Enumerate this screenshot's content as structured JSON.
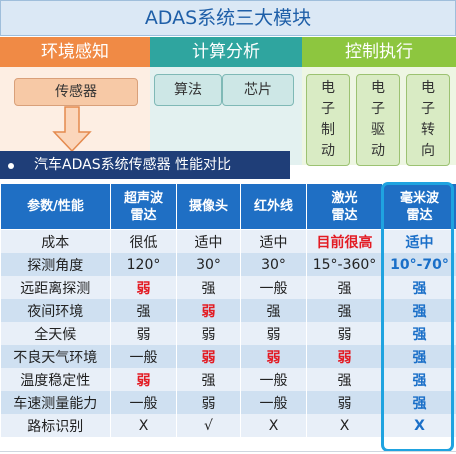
{
  "title": "ADAS系统三大模块",
  "categories": {
    "env": "环境感知",
    "calc": "计算分析",
    "ctrl": "控制执行"
  },
  "boxes": {
    "sensor": "传感器",
    "algo": "算法",
    "chip": "芯片",
    "brake": [
      "电",
      "子",
      "制",
      "动"
    ],
    "drive": [
      "电",
      "子",
      "驱",
      "动"
    ],
    "steer": [
      "电",
      "子",
      "转",
      "向"
    ]
  },
  "section_title": "汽车ADAS系统传感器 性能对比",
  "colors": {
    "header_blue": "#1f6fc4",
    "highlight_red": "#e31b23",
    "mm_radar_blue": "#1a6fc8",
    "frame_cyan": "#1fa3e0"
  },
  "table": {
    "headers": [
      "参数/性能",
      "超声波\n雷达",
      "摄像头",
      "红外线",
      "激光\n雷达",
      "毫米波\n雷达"
    ],
    "rows": [
      {
        "label": "成本",
        "cells": [
          "很低",
          "适中",
          "适中",
          "目前很高",
          "适中"
        ],
        "red": [
          false,
          false,
          false,
          true,
          false
        ]
      },
      {
        "label": "探测角度",
        "cells": [
          "120°",
          "30°",
          "30°",
          "15°-360°",
          "10°-70°"
        ],
        "red": [
          false,
          false,
          false,
          false,
          false
        ]
      },
      {
        "label": "远距离探测",
        "cells": [
          "弱",
          "强",
          "一般",
          "强",
          "强"
        ],
        "red": [
          true,
          false,
          false,
          false,
          false
        ]
      },
      {
        "label": "夜间环境",
        "cells": [
          "强",
          "弱",
          "强",
          "强",
          "强"
        ],
        "red": [
          false,
          true,
          false,
          false,
          false
        ]
      },
      {
        "label": "全天候",
        "cells": [
          "弱",
          "弱",
          "弱",
          "弱",
          "强"
        ],
        "red": [
          false,
          false,
          false,
          false,
          false
        ]
      },
      {
        "label": "不良天气环境",
        "cells": [
          "一般",
          "弱",
          "弱",
          "弱",
          "强"
        ],
        "red": [
          false,
          true,
          true,
          true,
          false
        ]
      },
      {
        "label": "温度稳定性",
        "cells": [
          "弱",
          "强",
          "一般",
          "强",
          "强"
        ],
        "red": [
          true,
          false,
          false,
          false,
          false
        ]
      },
      {
        "label": "车速测量能力",
        "cells": [
          "一般",
          "弱",
          "一般",
          "弱",
          "强"
        ],
        "red": [
          false,
          false,
          false,
          false,
          false
        ]
      },
      {
        "label": "路标识别",
        "cells": [
          "X",
          "√",
          "X",
          "X",
          "X"
        ],
        "red": [
          false,
          false,
          false,
          false,
          false
        ]
      }
    ]
  }
}
